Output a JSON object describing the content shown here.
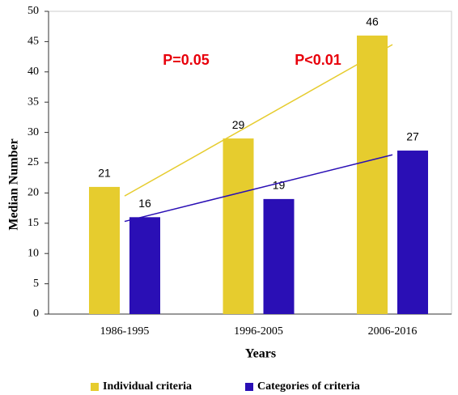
{
  "chart_data": {
    "type": "bar",
    "categories": [
      "1986-1995",
      "1996-2005",
      "2006-2016"
    ],
    "series": [
      {
        "name": "Individual criteria",
        "color": "#e6cc2e",
        "values": [
          21,
          29,
          46
        ],
        "trend_start": 19.5,
        "trend_end": 44.5
      },
      {
        "name": "Categories of criteria",
        "color": "#2a0fb5",
        "values": [
          16,
          19,
          27
        ],
        "trend_start": 15.3,
        "trend_end": 26.3
      }
    ],
    "annotations": [
      "P=0.05",
      "P<0.01"
    ],
    "annotation_color": "#e8000b",
    "xlabel": "Years",
    "ylabel": "Median Number",
    "ylim": [
      0,
      50
    ],
    "yticks": [
      0,
      5,
      10,
      15,
      20,
      25,
      30,
      35,
      40,
      45,
      50
    ],
    "legend": "bottom"
  }
}
